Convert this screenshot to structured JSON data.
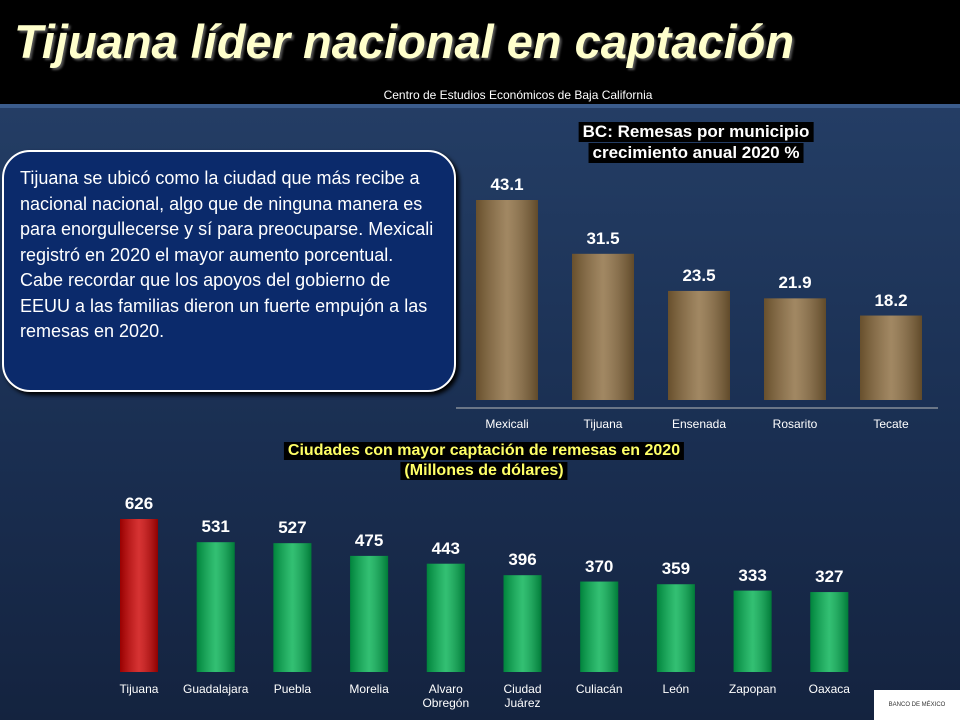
{
  "slide": {
    "title": "Tijuana líder nacional en captación",
    "subtitle": "Centro de Estudios Económicos de  Baja California",
    "text": "Tijuana se ubicó como la ciudad que más recibe a nacional nacional, algo que de ninguna manera es para enorgullecerse y sí para preocuparse. Mexicali registró en 2020 el mayor aumento porcentual. Cabe recordar que los apoyos del gobierno de EEUU a las familias dieron un fuerte empujón a las remesas en 2020.",
    "logo": "BANCO DE MÉXICO"
  },
  "chart_data": [
    {
      "type": "bar",
      "title": "BC: Remesas por municipio",
      "subtitle": "crecimiento anual 2020 %",
      "categories": [
        "Mexicali",
        "Tijuana",
        "Ensenada",
        "Rosarito",
        "Tecate"
      ],
      "values": [
        43.1,
        31.5,
        23.5,
        21.9,
        18.2
      ],
      "color": "#8a6a3c"
    },
    {
      "type": "bar",
      "title": "Ciudades con mayor captación de remesas en 2020",
      "subtitle": "(Millones de dólares)",
      "categories": [
        "Tijuana",
        "Guadalajara",
        "Puebla",
        "Morelia",
        "Alvaro\nObregón",
        "Ciudad\nJuárez",
        "Culiacán",
        "León",
        "Zapopan",
        "Oaxaca"
      ],
      "values": [
        626,
        531,
        527,
        475,
        443,
        396,
        370,
        359,
        333,
        327
      ],
      "colors": [
        "#cc0000",
        "#00b050",
        "#00b050",
        "#00b050",
        "#00b050",
        "#00b050",
        "#00b050",
        "#00b050",
        "#00b050",
        "#00b050"
      ]
    }
  ]
}
